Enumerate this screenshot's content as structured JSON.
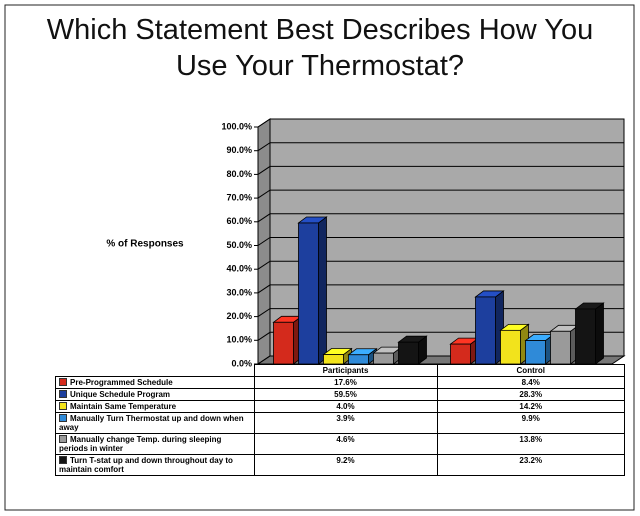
{
  "chart_data": {
    "type": "bar3d",
    "title": "Which Statement Best Describes How You Use Your Thermostat?",
    "y_label": "% of Responses",
    "categories": [
      "Participants",
      "Control"
    ],
    "series": [
      {
        "name": "Pre-Programmed Schedule",
        "color": "#d42a1c",
        "values": [
          17.6,
          8.4
        ],
        "value_labels": [
          "17.6%",
          "8.4%"
        ]
      },
      {
        "name": "Unique Schedule Program",
        "color": "#1d3f9e",
        "values": [
          59.5,
          28.3
        ],
        "value_labels": [
          "59.5%",
          "28.3%"
        ]
      },
      {
        "name": "Maintain Same Temperature",
        "color": "#f2e31c",
        "values": [
          4.0,
          14.2
        ],
        "value_labels": [
          "4.0%",
          "14.2%"
        ]
      },
      {
        "name": "Manually Turn Thermostat up and down when away",
        "color": "#2f8ad8",
        "values": [
          3.9,
          9.9
        ],
        "value_labels": [
          "3.9%",
          "9.9%"
        ]
      },
      {
        "name": "Manually change Temp. during sleeping periods in winter",
        "color": "#9a9a9a",
        "values": [
          4.6,
          13.8
        ],
        "value_labels": [
          "4.6%",
          "13.8%"
        ]
      },
      {
        "name": "Turn T-stat up and down throughout day to maintain comfort",
        "color": "#141414",
        "values": [
          9.2,
          23.2
        ],
        "value_labels": [
          "9.2%",
          "23.2%"
        ]
      }
    ],
    "ylim": [
      0,
      100
    ],
    "yticks": [
      {
        "value": 0,
        "label": "0.0%"
      },
      {
        "value": 10,
        "label": "10.0%"
      },
      {
        "value": 20,
        "label": "20.0%"
      },
      {
        "value": 30,
        "label": "30.0%"
      },
      {
        "value": 40,
        "label": "40.0%"
      },
      {
        "value": 50,
        "label": "50.0%"
      },
      {
        "value": 60,
        "label": "60.0%"
      },
      {
        "value": 70,
        "label": "70.0%"
      },
      {
        "value": 80,
        "label": "80.0%"
      },
      {
        "value": 90,
        "label": "90.0%"
      },
      {
        "value": 100,
        "label": "100.0%"
      }
    ],
    "grid": true
  }
}
